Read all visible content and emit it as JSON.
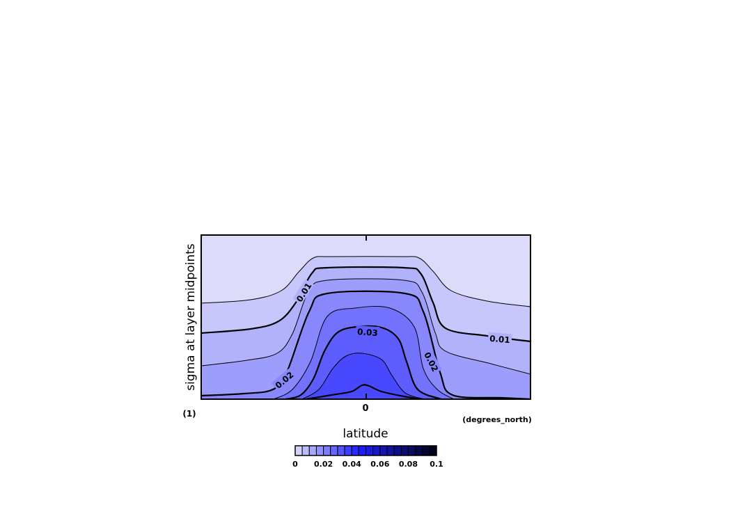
{
  "chart_data": {
    "type": "contour",
    "title": "",
    "xlabel": "latitude",
    "xunits": "(degrees_north)",
    "ylabel": "sigma at layer midpoints",
    "yunits": "(1)",
    "x_ticks": [
      "0"
    ],
    "contour_levels": [
      0.005,
      0.01,
      0.015,
      0.02,
      0.025,
      0.03,
      0.035
    ],
    "contour_labels": [
      {
        "text": "0.01",
        "level": 0.01
      },
      {
        "text": "0.01",
        "level": 0.01
      },
      {
        "text": "0.02",
        "level": 0.02
      },
      {
        "text": "0.02",
        "level": 0.02
      },
      {
        "text": "0.03",
        "level": 0.03
      }
    ],
    "colorbar": {
      "min": 0,
      "max": 0.1,
      "step": 0.005,
      "tick_labels": [
        "0",
        "0.02",
        "0.04",
        "0.06",
        "0.08",
        "0.1"
      ],
      "color_low": "#dcdcfa",
      "color_mid": "#1e1eff",
      "color_high": "#000014"
    },
    "grid": false
  }
}
